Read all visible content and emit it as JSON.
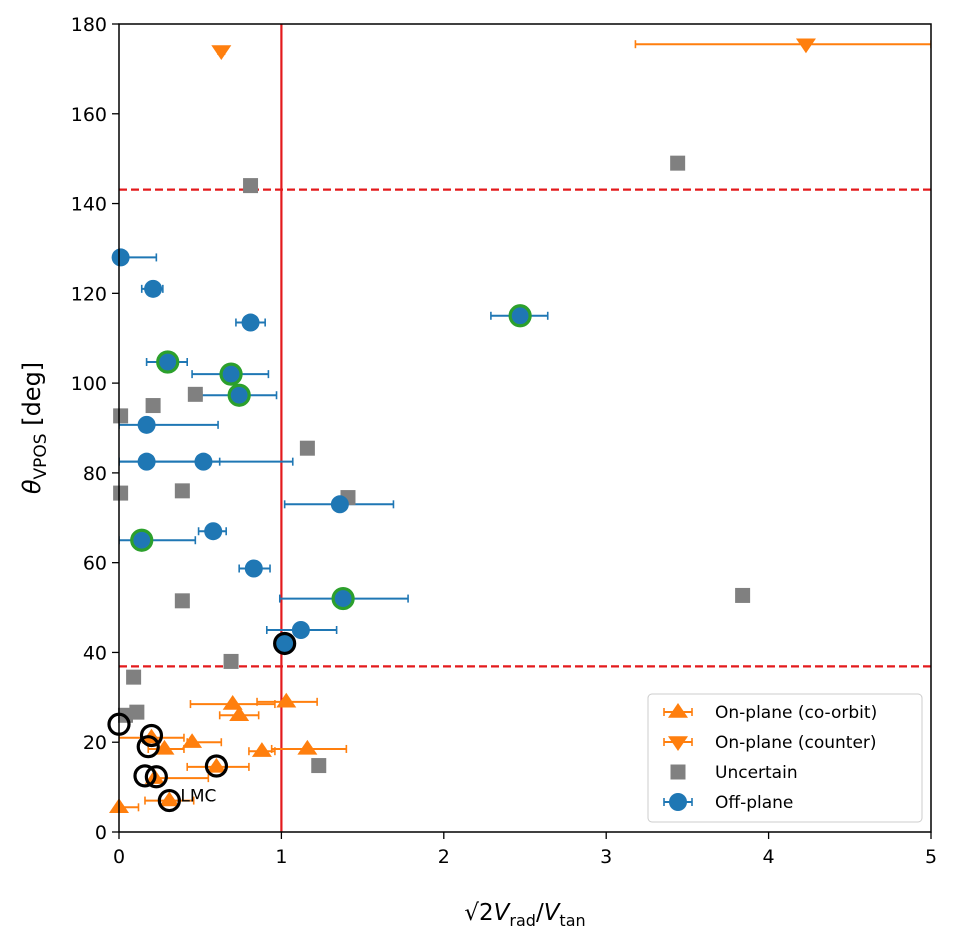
{
  "chart_data": {
    "type": "scatter",
    "xlabel": "√2 V_rad/V_tan",
    "xlabel_parts": {
      "sqrt": "√2",
      "v1": "V",
      "sub1": "rad",
      "slash": "/",
      "v2": "V",
      "sub2": "tan"
    },
    "ylabel": "θ_VPOS [deg]",
    "ylabel_parts": {
      "theta": "θ",
      "sub": "VPOS",
      "unit": " [deg]"
    },
    "xlim": [
      0,
      5
    ],
    "ylim": [
      0,
      180
    ],
    "xticks": [
      "0",
      "1",
      "2",
      "3",
      "4",
      "5"
    ],
    "yticks": [
      "0",
      "20",
      "40",
      "60",
      "80",
      "100",
      "120",
      "140",
      "160",
      "180"
    ],
    "grid": false,
    "legend_position": "lower-right",
    "reference_lines": {
      "vertical_x": 1.0,
      "horizontal_dashed_y": [
        36.9,
        143.1
      ],
      "color": "#e31a1c"
    },
    "colors": {
      "on_plane": "#ff7f0e",
      "uncertain": "#808080",
      "off_plane": "#1f77b4",
      "highlight_green": "#2ca02c",
      "highlight_black": "#000000"
    },
    "annotations": [
      {
        "text": "LMC",
        "x": 0.31,
        "y": 7
      }
    ],
    "series": [
      {
        "name": "On-plane (co-orbit)",
        "marker": "triangle-up",
        "points": [
          {
            "x": 0.0,
            "y": 5.5,
            "xerr": [
              0.0,
              0.12
            ]
          },
          {
            "x": 0.2,
            "y": 21.0,
            "xerr": [
              0.0,
              0.4
            ]
          },
          {
            "x": 0.28,
            "y": 18.5,
            "xerr": [
              0.18,
              0.4
            ]
          },
          {
            "x": 0.22,
            "y": 12.0,
            "xerr": [
              0.22,
              0.55
            ]
          },
          {
            "x": 0.31,
            "y": 7.0,
            "xerr": [
              0.16,
              0.46
            ]
          },
          {
            "x": 0.45,
            "y": 20.0,
            "xerr": [
              0.42,
              0.63
            ]
          },
          {
            "x": 0.6,
            "y": 14.5,
            "xerr": [
              0.42,
              0.8
            ]
          },
          {
            "x": 0.7,
            "y": 28.5,
            "xerr": [
              0.44,
              0.96
            ]
          },
          {
            "x": 0.74,
            "y": 26.0,
            "xerr": [
              0.62,
              0.86
            ]
          },
          {
            "x": 0.88,
            "y": 18.0,
            "xerr": [
              0.8,
              0.96
            ]
          },
          {
            "x": 1.03,
            "y": 29.0,
            "xerr": [
              0.85,
              1.22
            ]
          },
          {
            "x": 1.16,
            "y": 18.5,
            "xerr": [
              0.94,
              1.4
            ]
          }
        ]
      },
      {
        "name": "On-plane (counter)",
        "marker": "triangle-down",
        "points": [
          {
            "x": 0.63,
            "y": 174.0,
            "xerr": [
              0.61,
              0.65
            ]
          },
          {
            "x": 4.23,
            "y": 175.5,
            "xerr": [
              3.18,
              5.0
            ]
          }
        ]
      },
      {
        "name": "Uncertain",
        "marker": "square",
        "points": [
          {
            "x": 0.81,
            "y": 144.0
          },
          {
            "x": 3.44,
            "y": 149.0
          },
          {
            "x": 0.01,
            "y": 92.7
          },
          {
            "x": 0.21,
            "y": 95.0
          },
          {
            "x": 0.47,
            "y": 97.5
          },
          {
            "x": 1.16,
            "y": 85.5
          },
          {
            "x": 0.01,
            "y": 75.5
          },
          {
            "x": 0.39,
            "y": 76.0
          },
          {
            "x": 1.41,
            "y": 74.5
          },
          {
            "x": 0.39,
            "y": 51.5
          },
          {
            "x": 3.84,
            "y": 52.7
          },
          {
            "x": 0.69,
            "y": 38.0
          },
          {
            "x": 0.09,
            "y": 34.5
          },
          {
            "x": 0.11,
            "y": 26.7
          },
          {
            "x": 0.04,
            "y": 26.0
          },
          {
            "x": 1.23,
            "y": 14.8
          }
        ]
      },
      {
        "name": "Off-plane",
        "marker": "circle",
        "points": [
          {
            "x": 0.01,
            "y": 128.0,
            "xerr": [
              0.0,
              0.23
            ]
          },
          {
            "x": 0.21,
            "y": 121.0,
            "xerr": [
              0.14,
              0.27
            ]
          },
          {
            "x": 2.47,
            "y": 115.0,
            "xerr": [
              2.29,
              2.64
            ],
            "ring": "green"
          },
          {
            "x": 0.81,
            "y": 113.5,
            "xerr": [
              0.72,
              0.9
            ]
          },
          {
            "x": 0.3,
            "y": 104.7,
            "xerr": [
              0.17,
              0.42
            ],
            "ring": "green"
          },
          {
            "x": 0.69,
            "y": 102.0,
            "xerr": [
              0.45,
              0.92
            ],
            "ring": "green"
          },
          {
            "x": 0.74,
            "y": 97.3,
            "xerr": [
              0.51,
              0.97
            ],
            "ring": "green"
          },
          {
            "x": 0.17,
            "y": 90.7,
            "xerr": [
              0.0,
              0.61
            ]
          },
          {
            "x": 0.17,
            "y": 82.5,
            "xerr": [
              0.0,
              0.62
            ]
          },
          {
            "x": 0.52,
            "y": 82.5,
            "xerr": [
              0.0,
              1.07
            ]
          },
          {
            "x": 1.36,
            "y": 73.0,
            "xerr": [
              1.02,
              1.69
            ]
          },
          {
            "x": 0.58,
            "y": 67.0,
            "xerr": [
              0.49,
              0.66
            ]
          },
          {
            "x": 0.14,
            "y": 65.0,
            "xerr": [
              0.0,
              0.47
            ],
            "ring": "green"
          },
          {
            "x": 0.83,
            "y": 58.7,
            "xerr": [
              0.74,
              0.93
            ]
          },
          {
            "x": 1.38,
            "y": 52.0,
            "xerr": [
              0.99,
              1.78
            ],
            "ring": "green"
          },
          {
            "x": 1.12,
            "y": 45.0,
            "xerr": [
              0.91,
              1.34
            ]
          }
        ]
      },
      {
        "name": "Highlighted (black ring)",
        "marker": "open-circle",
        "in_legend": false,
        "points": [
          {
            "x": 1.02,
            "y": 42.0,
            "filled": true
          },
          {
            "x": 0.0,
            "y": 24.0
          },
          {
            "x": 0.2,
            "y": 21.5
          },
          {
            "x": 0.18,
            "y": 19.0
          },
          {
            "x": 0.16,
            "y": 12.5
          },
          {
            "x": 0.23,
            "y": 12.3
          },
          {
            "x": 0.31,
            "y": 7.0
          },
          {
            "x": 0.6,
            "y": 14.7
          }
        ]
      }
    ]
  }
}
